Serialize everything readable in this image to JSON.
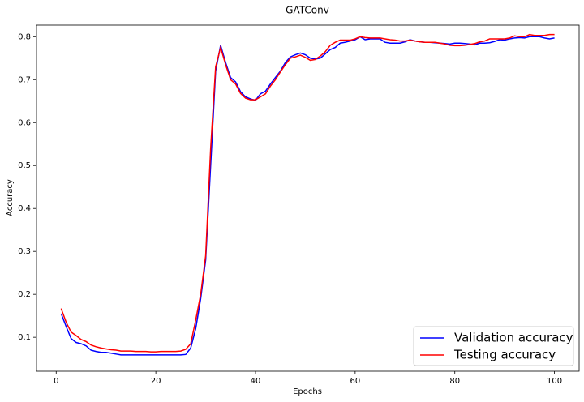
{
  "chart_data": {
    "type": "line",
    "title": "GATConv",
    "x_label": "Epochs",
    "y_label": "Accuracy",
    "x": [
      1,
      2,
      3,
      4,
      5,
      6,
      7,
      8,
      9,
      10,
      11,
      12,
      13,
      14,
      15,
      16,
      17,
      18,
      19,
      20,
      21,
      22,
      23,
      24,
      25,
      26,
      27,
      28,
      29,
      30,
      31,
      32,
      33,
      34,
      35,
      36,
      37,
      38,
      39,
      40,
      41,
      42,
      43,
      44,
      45,
      46,
      47,
      48,
      49,
      50,
      51,
      52,
      53,
      54,
      55,
      56,
      57,
      58,
      59,
      60,
      61,
      62,
      63,
      64,
      65,
      66,
      67,
      68,
      69,
      70,
      71,
      72,
      73,
      74,
      75,
      76,
      77,
      78,
      79,
      80,
      81,
      82,
      83,
      84,
      85,
      86,
      87,
      88,
      89,
      90,
      91,
      92,
      93,
      94,
      95,
      96,
      97,
      98,
      99,
      100
    ],
    "series": [
      {
        "name": "Validation accuracy",
        "color": "#0000ff",
        "values": [
          0.155,
          0.125,
          0.097,
          0.088,
          0.085,
          0.08,
          0.07,
          0.067,
          0.065,
          0.065,
          0.063,
          0.061,
          0.059,
          0.059,
          0.059,
          0.059,
          0.059,
          0.059,
          0.059,
          0.059,
          0.059,
          0.059,
          0.059,
          0.059,
          0.059,
          0.06,
          0.075,
          0.12,
          0.19,
          0.28,
          0.5,
          0.72,
          0.78,
          0.74,
          0.705,
          0.695,
          0.672,
          0.66,
          0.655,
          0.652,
          0.667,
          0.673,
          0.69,
          0.705,
          0.72,
          0.74,
          0.753,
          0.758,
          0.762,
          0.758,
          0.75,
          0.748,
          0.75,
          0.76,
          0.77,
          0.775,
          0.785,
          0.787,
          0.79,
          0.793,
          0.8,
          0.793,
          0.795,
          0.795,
          0.795,
          0.787,
          0.785,
          0.785,
          0.785,
          0.788,
          0.793,
          0.79,
          0.788,
          0.787,
          0.787,
          0.786,
          0.785,
          0.784,
          0.783,
          0.785,
          0.785,
          0.784,
          0.783,
          0.781,
          0.785,
          0.785,
          0.786,
          0.789,
          0.793,
          0.792,
          0.795,
          0.797,
          0.798,
          0.797,
          0.8,
          0.8,
          0.8,
          0.797,
          0.795,
          0.797
        ]
      },
      {
        "name": "Testing accuracy",
        "color": "#ff0000",
        "values": [
          0.167,
          0.135,
          0.112,
          0.104,
          0.095,
          0.09,
          0.082,
          0.078,
          0.075,
          0.073,
          0.071,
          0.07,
          0.068,
          0.068,
          0.068,
          0.067,
          0.067,
          0.067,
          0.066,
          0.066,
          0.067,
          0.067,
          0.067,
          0.067,
          0.068,
          0.072,
          0.085,
          0.14,
          0.2,
          0.29,
          0.54,
          0.73,
          0.775,
          0.735,
          0.7,
          0.69,
          0.668,
          0.657,
          0.653,
          0.653,
          0.66,
          0.667,
          0.685,
          0.7,
          0.718,
          0.735,
          0.75,
          0.753,
          0.757,
          0.752,
          0.745,
          0.747,
          0.755,
          0.765,
          0.78,
          0.787,
          0.792,
          0.792,
          0.792,
          0.795,
          0.8,
          0.798,
          0.797,
          0.797,
          0.797,
          0.795,
          0.793,
          0.792,
          0.79,
          0.79,
          0.792,
          0.79,
          0.788,
          0.787,
          0.787,
          0.787,
          0.785,
          0.783,
          0.78,
          0.779,
          0.779,
          0.78,
          0.782,
          0.784,
          0.788,
          0.79,
          0.795,
          0.795,
          0.795,
          0.795,
          0.797,
          0.802,
          0.8,
          0.8,
          0.805,
          0.803,
          0.803,
          0.803,
          0.805,
          0.805
        ]
      }
    ],
    "xlim": [
      -3.95,
      104.95
    ],
    "ylim": [
      0.021,
      0.827
    ],
    "xticks": [
      0,
      20,
      40,
      60,
      80,
      100
    ],
    "yticks": [
      0.1,
      0.2,
      0.3,
      0.4,
      0.5,
      0.6,
      0.7,
      0.8
    ],
    "legend": "lower right"
  }
}
